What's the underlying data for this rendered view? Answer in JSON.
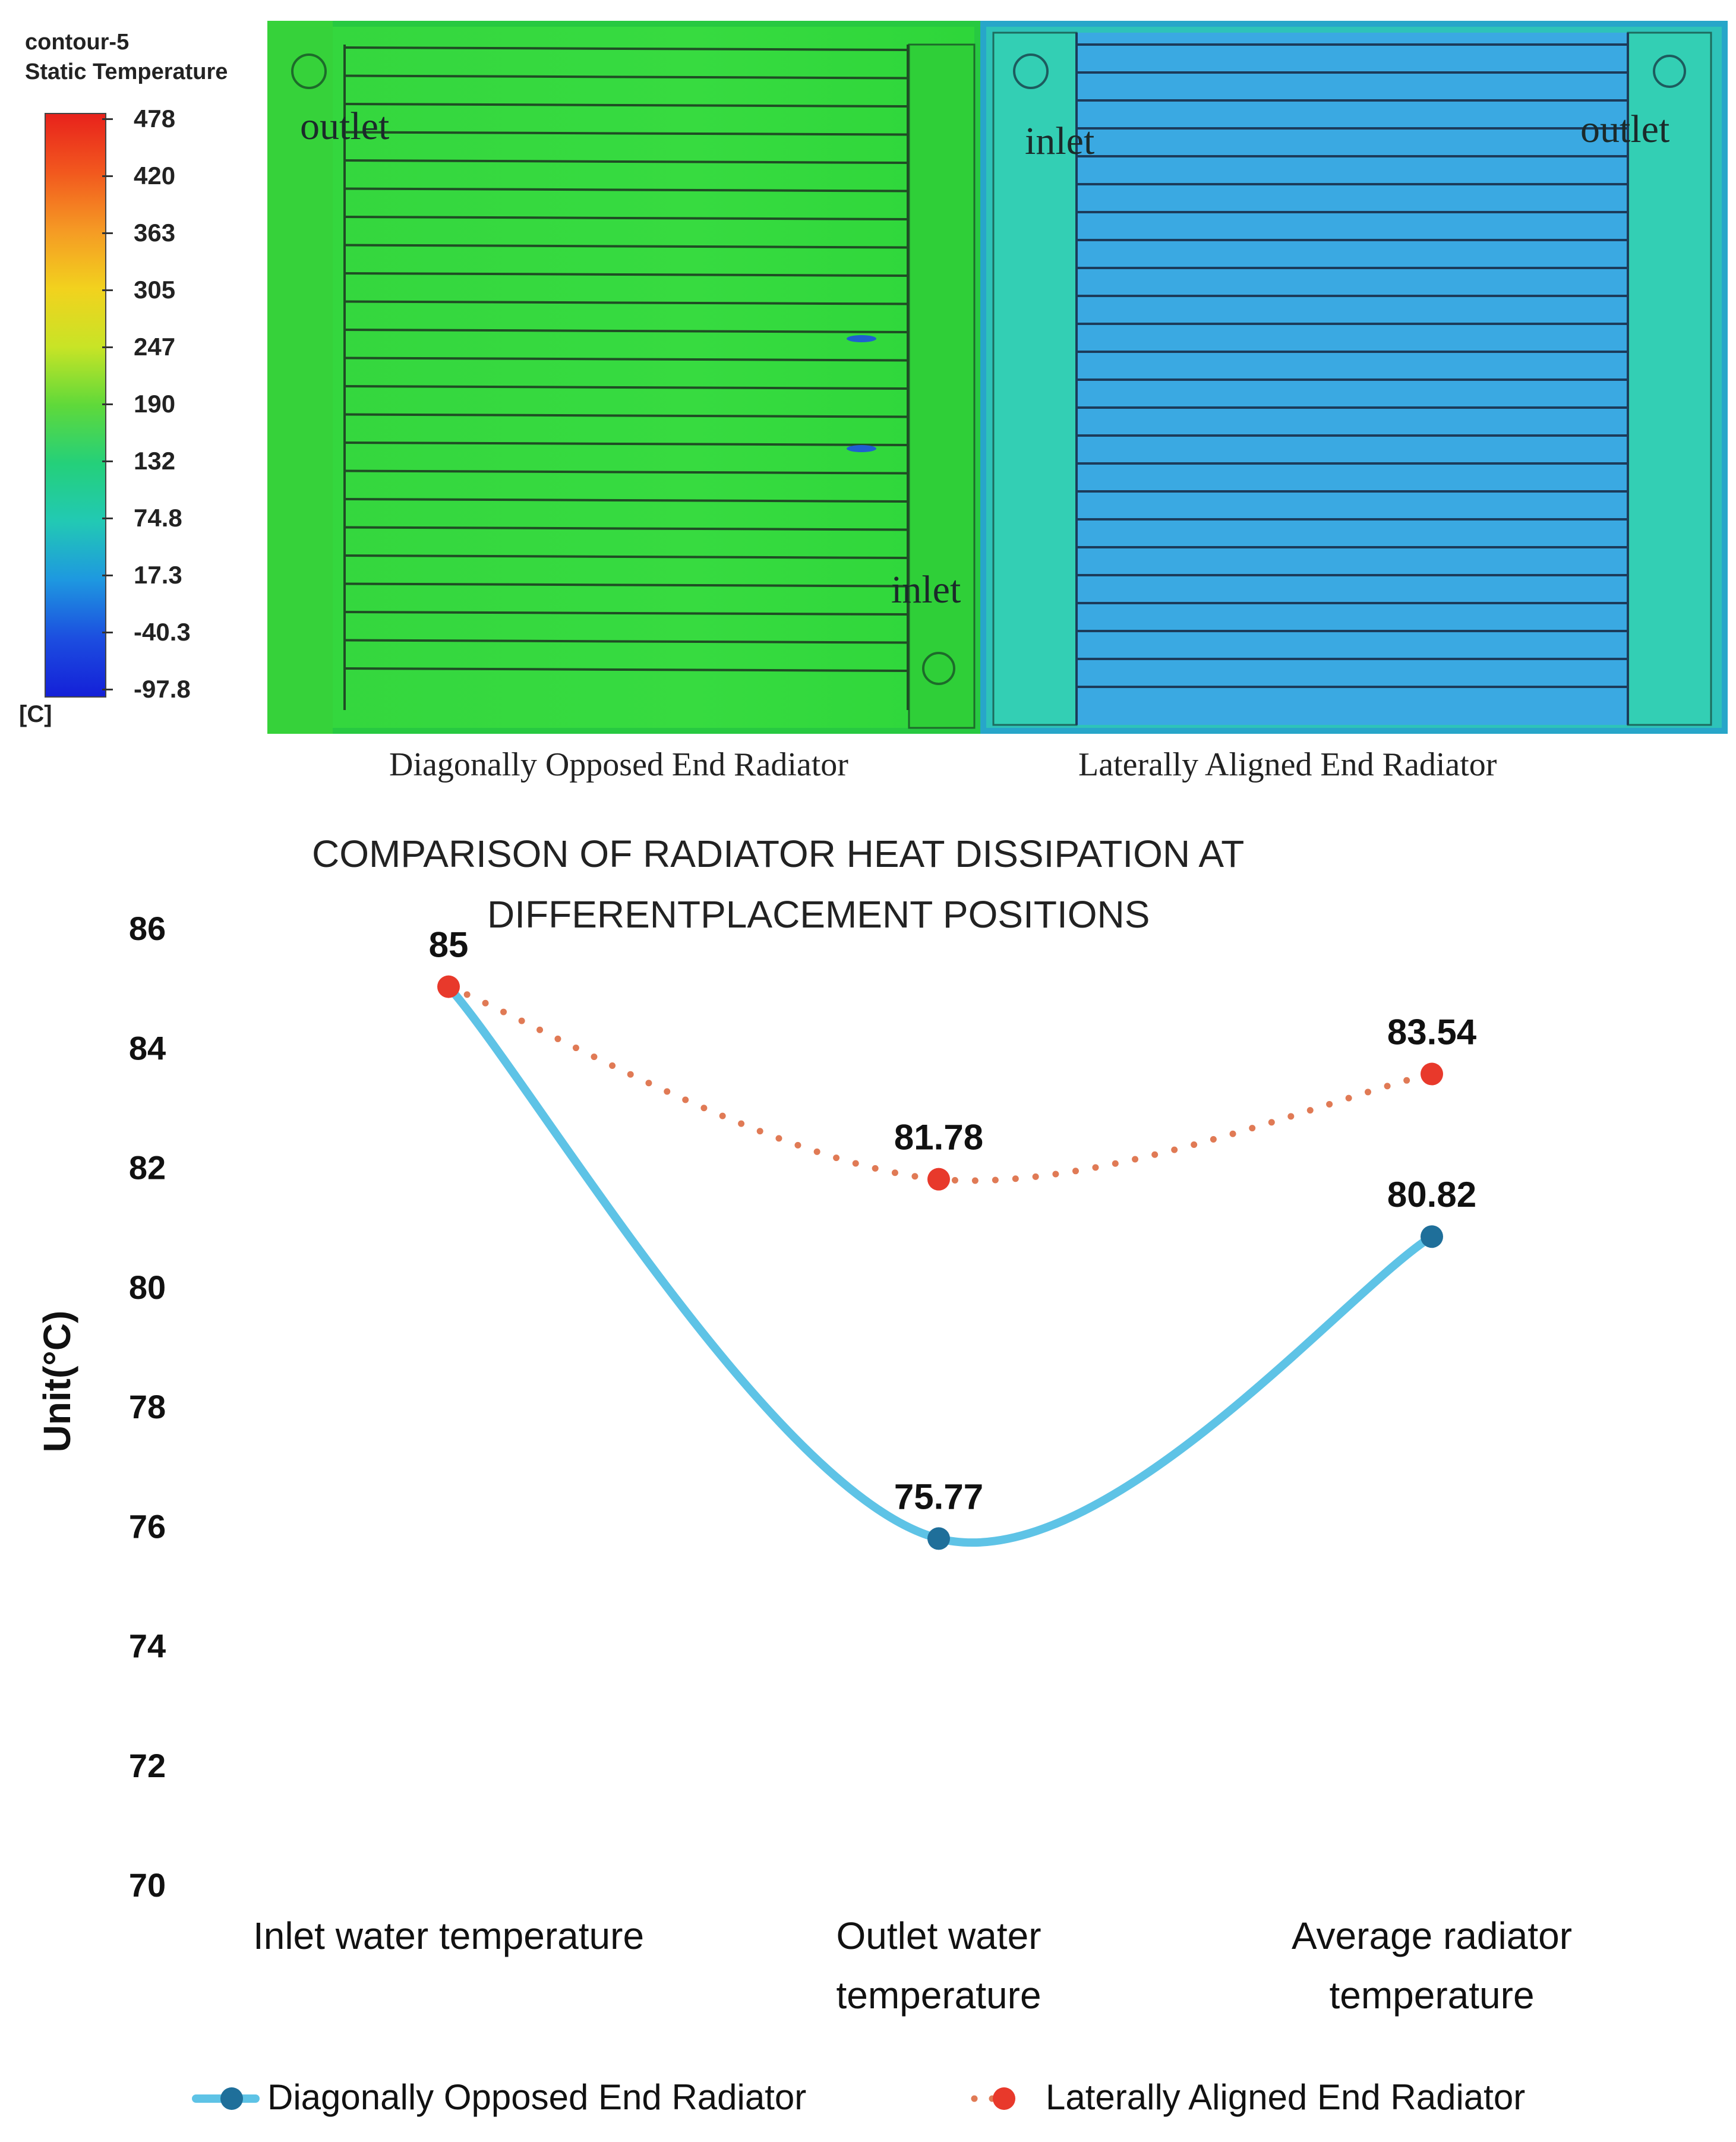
{
  "legend": {
    "title_line1": "contour-5",
    "title_line2": "Static Temperature",
    "ticks": [
      "478",
      "420",
      "363",
      "305",
      "247",
      "190",
      "132",
      "74.8",
      "17.3",
      "-40.3",
      "-97.8"
    ],
    "unit": "[C]"
  },
  "panels": {
    "left": {
      "caption": "Diagonally Opposed End Radiator",
      "label_a": "outlet",
      "label_b": "inlet"
    },
    "right": {
      "caption": "Laterally Aligned End Radiator",
      "label_a": "inlet",
      "label_b": "outlet"
    }
  },
  "colors": {
    "left_panel_bg": "#2fd33c",
    "right_panel_bg": "#2fc3b8",
    "series1_line": "#5ec3e6",
    "series1_marker": "#1f6f9a",
    "series2_line": "#e07a55",
    "series2_marker": "#e8392b"
  },
  "chart_data": {
    "type": "line",
    "title_line1": "COMPARISON OF RADIATOR HEAT DISSIPATION AT",
    "title_line2": "DIFFERENTPLACEMENT POSITIONS",
    "ylabel": "Unit(°C)",
    "xlabel": "",
    "ylim": [
      70,
      86
    ],
    "yticks": [
      70,
      72,
      74,
      76,
      78,
      80,
      82,
      84,
      86
    ],
    "categories": [
      [
        "Inlet water temperature"
      ],
      [
        "Outlet water",
        "temperature"
      ],
      [
        "Average radiator",
        "temperature"
      ]
    ],
    "series": [
      {
        "name": "Diagonally Opposed End Radiator",
        "style": "solid",
        "values": [
          85,
          75.77,
          80.82
        ],
        "labels": [
          "",
          "75.77",
          "80.82"
        ]
      },
      {
        "name": "Laterally Aligned End Radiator",
        "style": "dotted",
        "values": [
          85,
          81.78,
          83.54
        ],
        "labels": [
          "85",
          "81.78",
          "83.54"
        ]
      }
    ],
    "legend_position": "bottom"
  }
}
